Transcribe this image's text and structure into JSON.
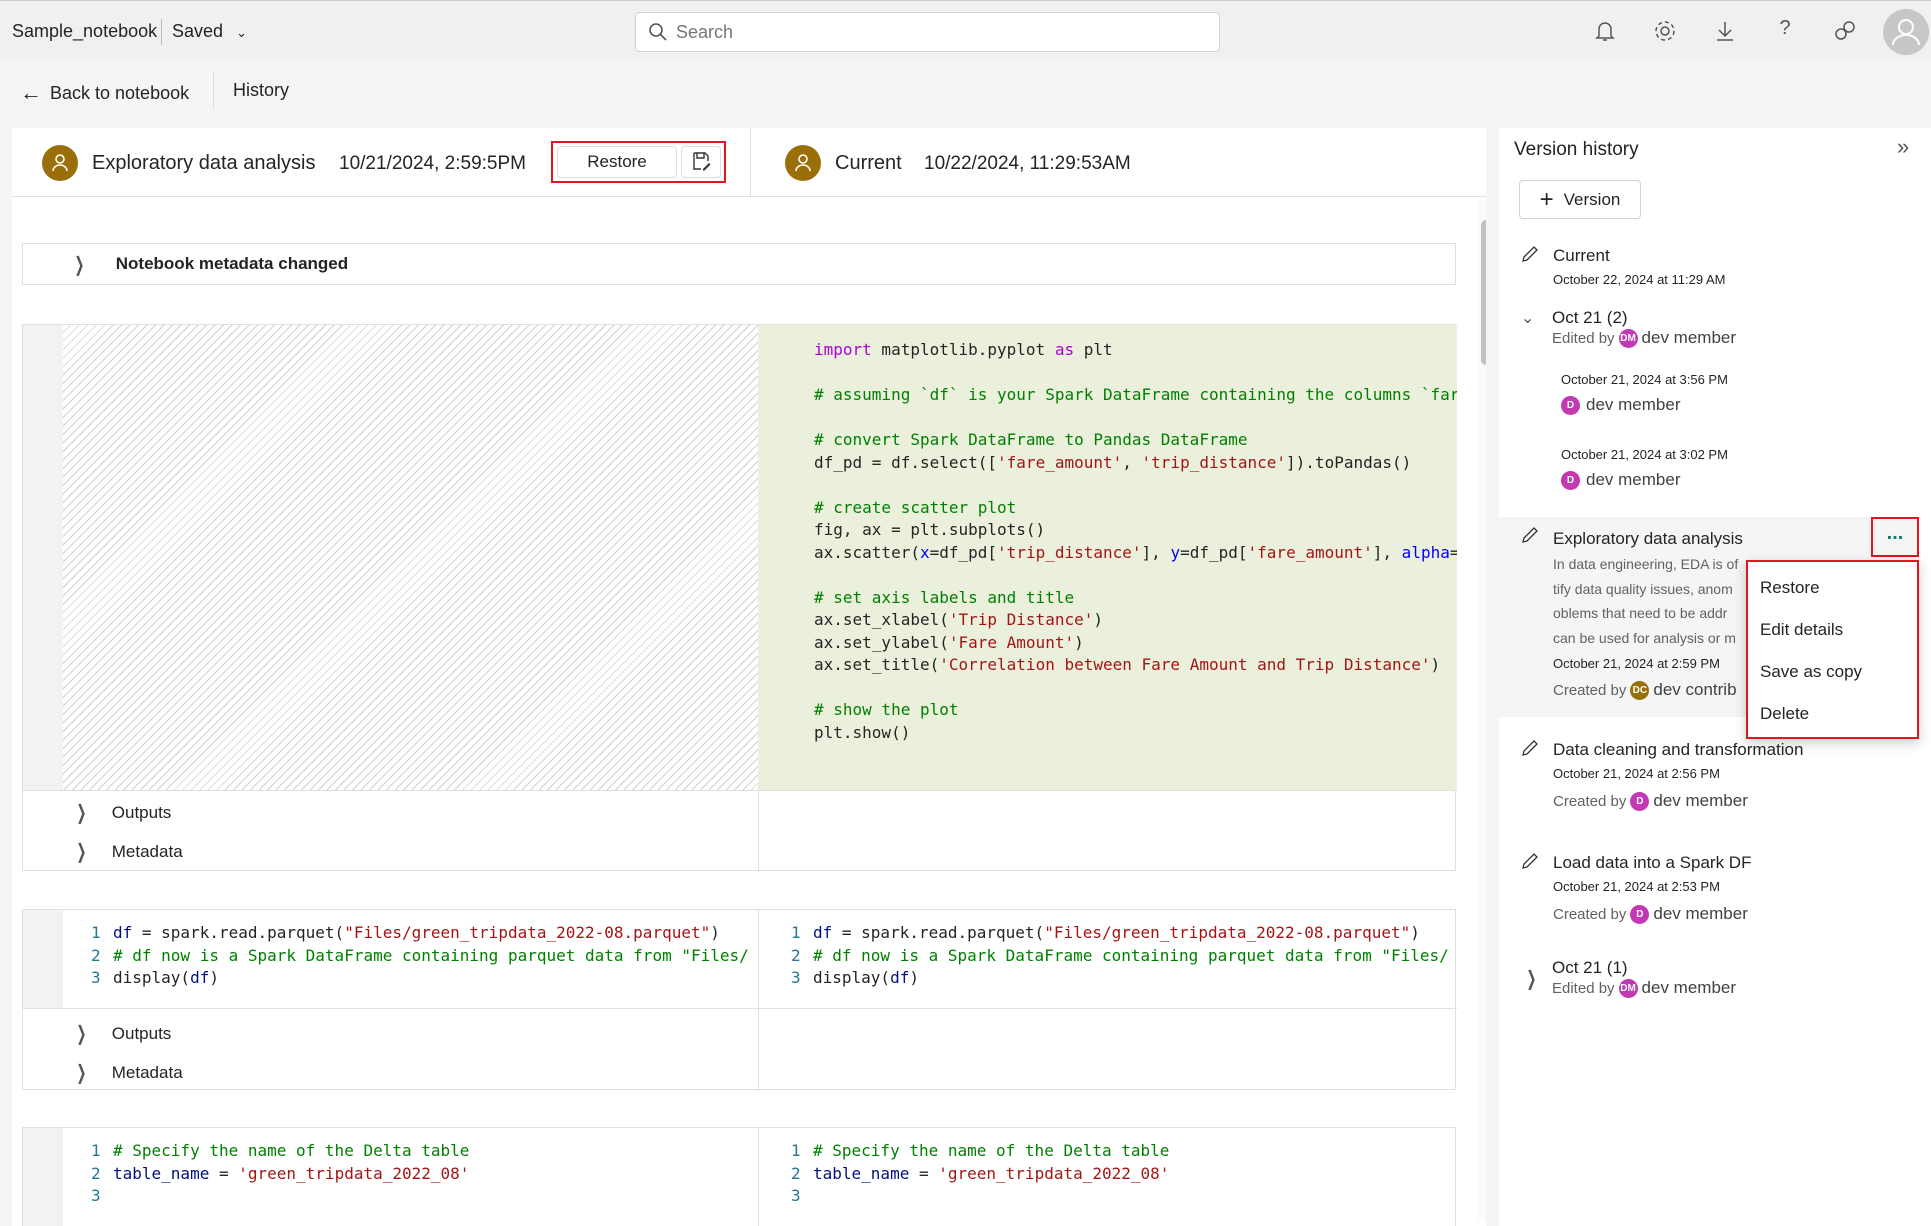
{
  "topbar": {
    "notebook_name": "Sample_notebook",
    "save_status": "Saved",
    "search_placeholder": "Search"
  },
  "subbar": {
    "back_label": "Back to notebook",
    "history_label": "History"
  },
  "compare": {
    "left": {
      "title": "Exploratory data analysis",
      "timestamp": "10/21/2024, 2:59:5PM",
      "restore_label": "Restore"
    },
    "right": {
      "title": "Current",
      "timestamp": "10/22/2024, 11:29:53AM"
    },
    "metadata_row": "Notebook metadata changed",
    "outputs_label": "Outputs",
    "metadata_label": "Metadata",
    "cell1_code": [
      [
        [
          "import",
          "kw"
        ],
        [
          " matplotlib.pyplot ",
          ""
        ],
        [
          "as",
          "kw"
        ],
        [
          " plt",
          ""
        ]
      ],
      [],
      [
        [
          "# assuming `df` is your Spark DataFrame containing the columns `far",
          "cm"
        ]
      ],
      [],
      [
        [
          "# convert Spark DataFrame to Pandas DataFrame",
          "cm"
        ]
      ],
      [
        [
          "df_pd = df.select([",
          ""
        ],
        [
          "'fare_amount'",
          "st"
        ],
        [
          ", ",
          ""
        ],
        [
          "'trip_distance'",
          "st"
        ],
        [
          "]).toPandas()",
          ""
        ]
      ],
      [],
      [
        [
          "# create scatter plot",
          "cm"
        ]
      ],
      [
        [
          "fig, ax = plt.subplots()",
          ""
        ]
      ],
      [
        [
          "ax.scatter(",
          ""
        ],
        [
          "x",
          "pr"
        ],
        [
          "=df_pd[",
          ""
        ],
        [
          "'trip_distance'",
          "st"
        ],
        [
          "], ",
          ""
        ],
        [
          "y",
          "pr"
        ],
        [
          "=df_pd[",
          ""
        ],
        [
          "'fare_amount'",
          "st"
        ],
        [
          "], ",
          ""
        ],
        [
          "alpha",
          "pr"
        ],
        [
          "=",
          ""
        ]
      ],
      [],
      [
        [
          "# set axis labels and title",
          "cm"
        ]
      ],
      [
        [
          "ax.set_xlabel(",
          ""
        ],
        [
          "'Trip Distance'",
          "st"
        ],
        [
          ")",
          ""
        ]
      ],
      [
        [
          "ax.set_ylabel(",
          ""
        ],
        [
          "'Fare Amount'",
          "st"
        ],
        [
          ")",
          ""
        ]
      ],
      [
        [
          "ax.set_title(",
          ""
        ],
        [
          "'Correlation between Fare Amount and Trip Distance'",
          "st"
        ],
        [
          ")",
          ""
        ]
      ],
      [],
      [
        [
          "# show the plot",
          "cm"
        ]
      ],
      [
        [
          "plt.show()",
          ""
        ]
      ]
    ],
    "cell2_code": [
      [
        [
          "1",
          "ln"
        ],
        [
          "df",
          "vr"
        ],
        [
          " = spark.read.parquet(",
          ""
        ],
        [
          "\"Files/green_tripdata_2022-08.parquet\"",
          "st"
        ],
        [
          ")",
          ""
        ]
      ],
      [
        [
          "2",
          "ln"
        ],
        [
          "# df now is a Spark DataFrame containing parquet data from \"Files/",
          "cm"
        ]
      ],
      [
        [
          "3",
          "ln"
        ],
        [
          "display(",
          ""
        ],
        [
          "df",
          "vr"
        ],
        [
          ")",
          ""
        ]
      ]
    ],
    "cell3_code": [
      [
        [
          "1",
          "ln"
        ],
        [
          "# Specify the name of the Delta table",
          "cm"
        ]
      ],
      [
        [
          "2",
          "ln"
        ],
        [
          "table_name",
          "vr"
        ],
        [
          " = ",
          ""
        ],
        [
          "'green_tripdata_2022_08'",
          "st"
        ]
      ],
      [
        [
          "3",
          "ln"
        ]
      ]
    ]
  },
  "version_history": {
    "title": "Version history",
    "add_version_label": "Version",
    "current": {
      "title": "Current",
      "date": "October 22, 2024 at 11:29 AM"
    },
    "group1": {
      "title": "Oct 21 (2)",
      "edited_by": "Edited by",
      "initials": "DM",
      "user": "dev member",
      "entries": [
        {
          "date": "October 21, 2024 at 3:56 PM",
          "initial": "D",
          "user": "dev member"
        },
        {
          "date": "October 21, 2024 at 3:02 PM",
          "initial": "D",
          "user": "dev member"
        }
      ]
    },
    "eda": {
      "title": "Exploratory data analysis",
      "desc": [
        "In data engineering, EDA is of",
        "tify data quality issues, anom",
        "oblems that need to be addr",
        "can be used for analysis or m"
      ],
      "date": "October 21, 2024 at 2:59 PM",
      "created_by": "Created by",
      "initials": "DC",
      "user": "dev contrib",
      "more_label": "..."
    },
    "menu": [
      "Restore",
      "Edit details",
      "Save as copy",
      "Delete"
    ],
    "cleaning": {
      "title": "Data cleaning and transformation",
      "date": "October 21, 2024 at 2:56 PM",
      "created_by": "Created by",
      "initial": "D",
      "user": "dev member"
    },
    "load": {
      "title": "Load data into a Spark DF",
      "date": "October 21, 2024 at 2:53 PM",
      "created_by": "Created by",
      "initial": "D",
      "user": "dev member"
    },
    "group2": {
      "title": "Oct 21 (1)",
      "edited_by": "Edited by",
      "initials": "DM",
      "user": "dev member"
    }
  },
  "colors": {
    "highlight_border": "#e3131f",
    "avatar_member": "#c239b3",
    "avatar_contrib": "#9a6f0a",
    "changed_cell_bg": "#ebf0dc"
  }
}
